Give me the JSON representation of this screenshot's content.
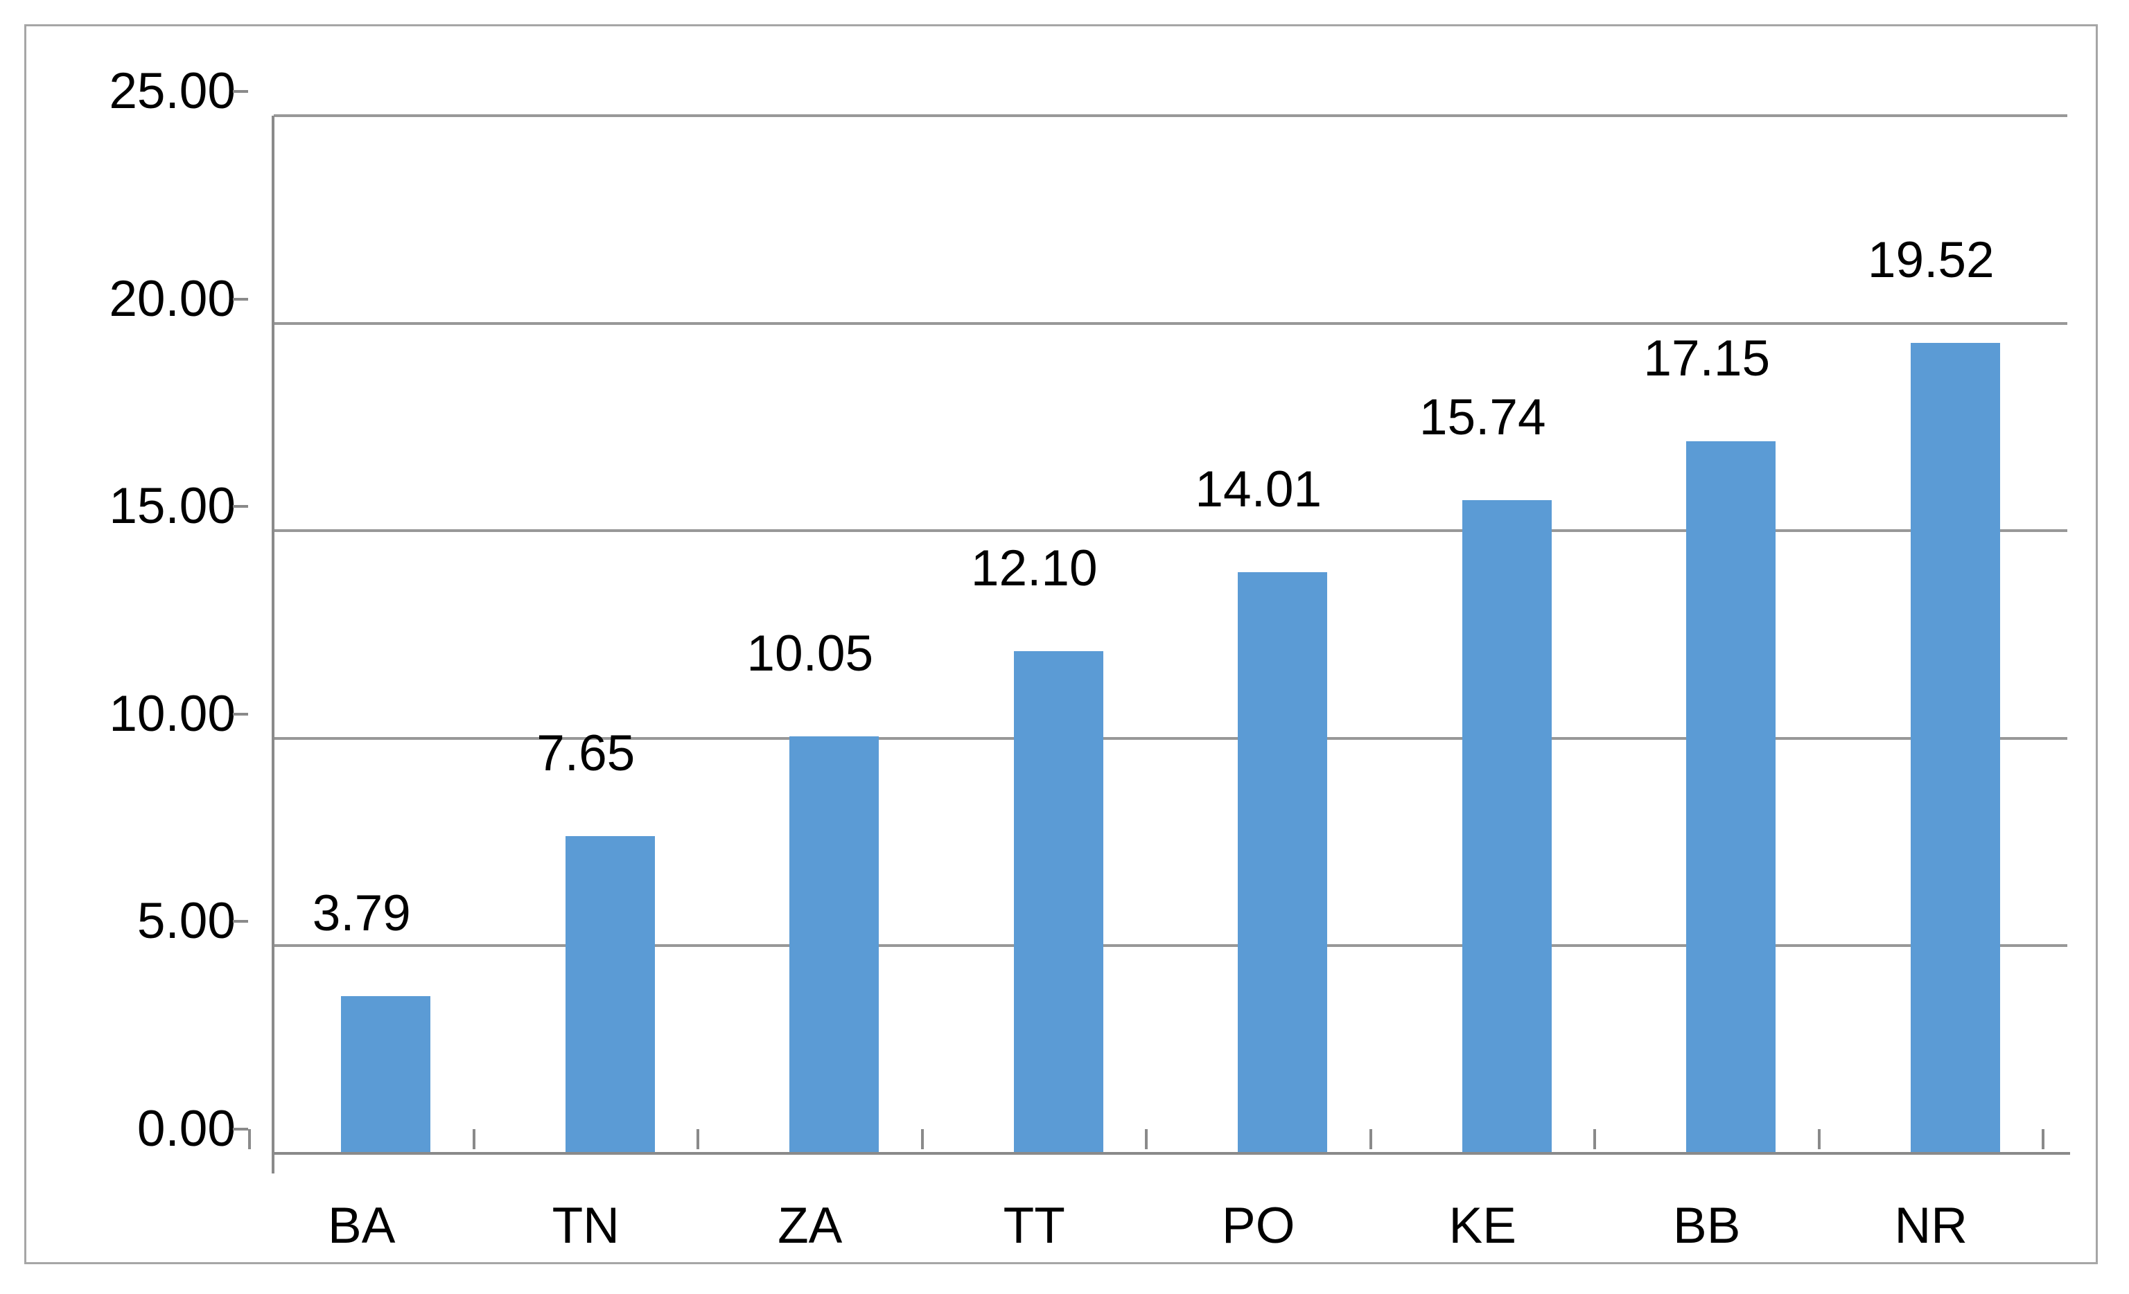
{
  "chart_data": {
    "type": "bar",
    "title": "",
    "xlabel": "",
    "ylabel": "",
    "categories": [
      "BA",
      "TN",
      "ZA",
      "TT",
      "PO",
      "KE",
      "BB",
      "NR"
    ],
    "values": [
      3.79,
      7.65,
      10.05,
      12.1,
      14.01,
      15.74,
      17.15,
      19.52
    ],
    "value_labels": [
      "3.79",
      "7.65",
      "10.05",
      "12.10",
      "14.01",
      "15.74",
      "17.15",
      "19.52"
    ],
    "ylim": [
      0,
      25
    ],
    "yticks": [
      {
        "value": 0,
        "label": "0.00"
      },
      {
        "value": 5,
        "label": "5.00"
      },
      {
        "value": 10,
        "label": "10.00"
      },
      {
        "value": 15,
        "label": "15.00"
      },
      {
        "value": 20,
        "label": "20.00"
      },
      {
        "value": 25,
        "label": "25.00"
      }
    ],
    "grid": "horizontal",
    "legend": "none",
    "data_labels": "above-bars",
    "colors": {
      "bar": "#5B9BD5",
      "gridline": "#989898",
      "axis": "#8A8A8A",
      "frame_border": "#A6A6A6",
      "text": "#000000",
      "background": "#FFFFFF"
    }
  }
}
